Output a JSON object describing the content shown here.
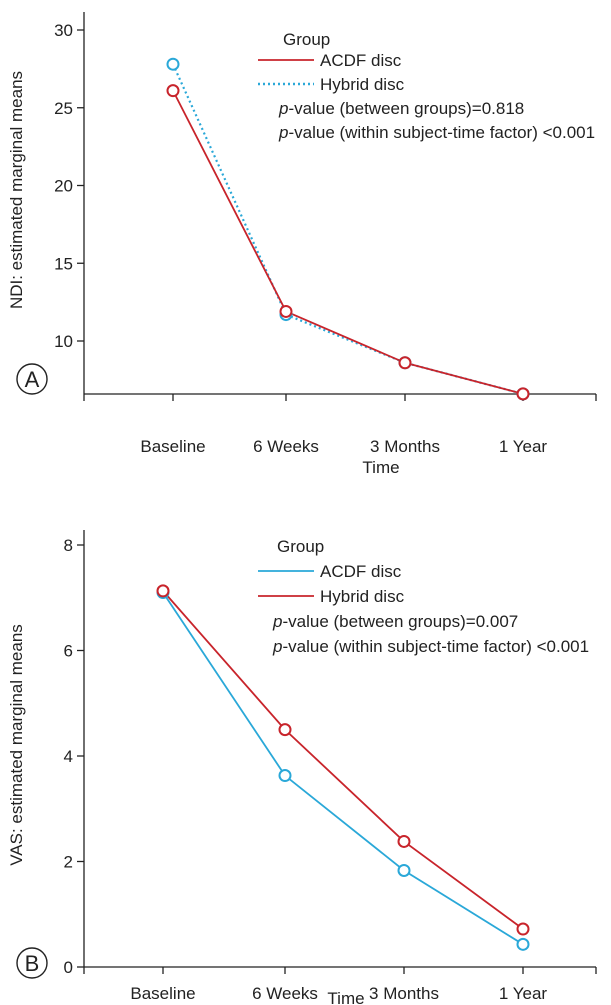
{
  "chart_data": [
    {
      "type": "line",
      "panel_label": "A",
      "categories": [
        "Baseline",
        "6 Weeks",
        "3 Months",
        "1 Year"
      ],
      "xlabel": "Time",
      "ylabel": "NDI: estimated marginal means",
      "ylim": [
        7,
        31
      ],
      "yticks": [
        10,
        15,
        20,
        25,
        30
      ],
      "legend": {
        "title": "Group",
        "position": "top-right",
        "stats": [
          {
            "prefix": "p",
            "text": "-value (between groups)=0.818"
          },
          {
            "prefix": "p",
            "text": "-value (within subject-time factor) <0.001"
          }
        ]
      },
      "series": [
        {
          "name": "ACDF disc",
          "color": "#c8242b",
          "style": "solid",
          "values": [
            26.1,
            11.9,
            8.6,
            6.6
          ]
        },
        {
          "name": "Hybrid disc",
          "color": "#2aa8d8",
          "style": "dotted",
          "values": [
            27.8,
            11.7,
            8.6,
            6.6
          ]
        }
      ]
    },
    {
      "type": "line",
      "panel_label": "B",
      "categories": [
        "Baseline",
        "6 Weeks",
        "3 Months",
        "1 Year"
      ],
      "xlabel": "Time",
      "ylabel": "VAS: estimated marginal means",
      "ylim": [
        0,
        8.3
      ],
      "yticks": [
        0,
        2,
        4,
        6,
        8
      ],
      "legend": {
        "title": "Group",
        "position": "top-right",
        "stats": [
          {
            "prefix": "p",
            "text": "-value (between groups)=0.007"
          },
          {
            "prefix": "p",
            "text": "-value (within subject-time factor) <0.001"
          }
        ]
      },
      "series": [
        {
          "name": "ACDF disc",
          "color": "#2aa8d8",
          "style": "solid",
          "values": [
            7.1,
            3.63,
            1.83,
            0.43
          ]
        },
        {
          "name": "Hybrid disc",
          "color": "#c8242b",
          "style": "solid",
          "values": [
            7.13,
            4.5,
            2.38,
            0.72
          ]
        }
      ]
    }
  ]
}
